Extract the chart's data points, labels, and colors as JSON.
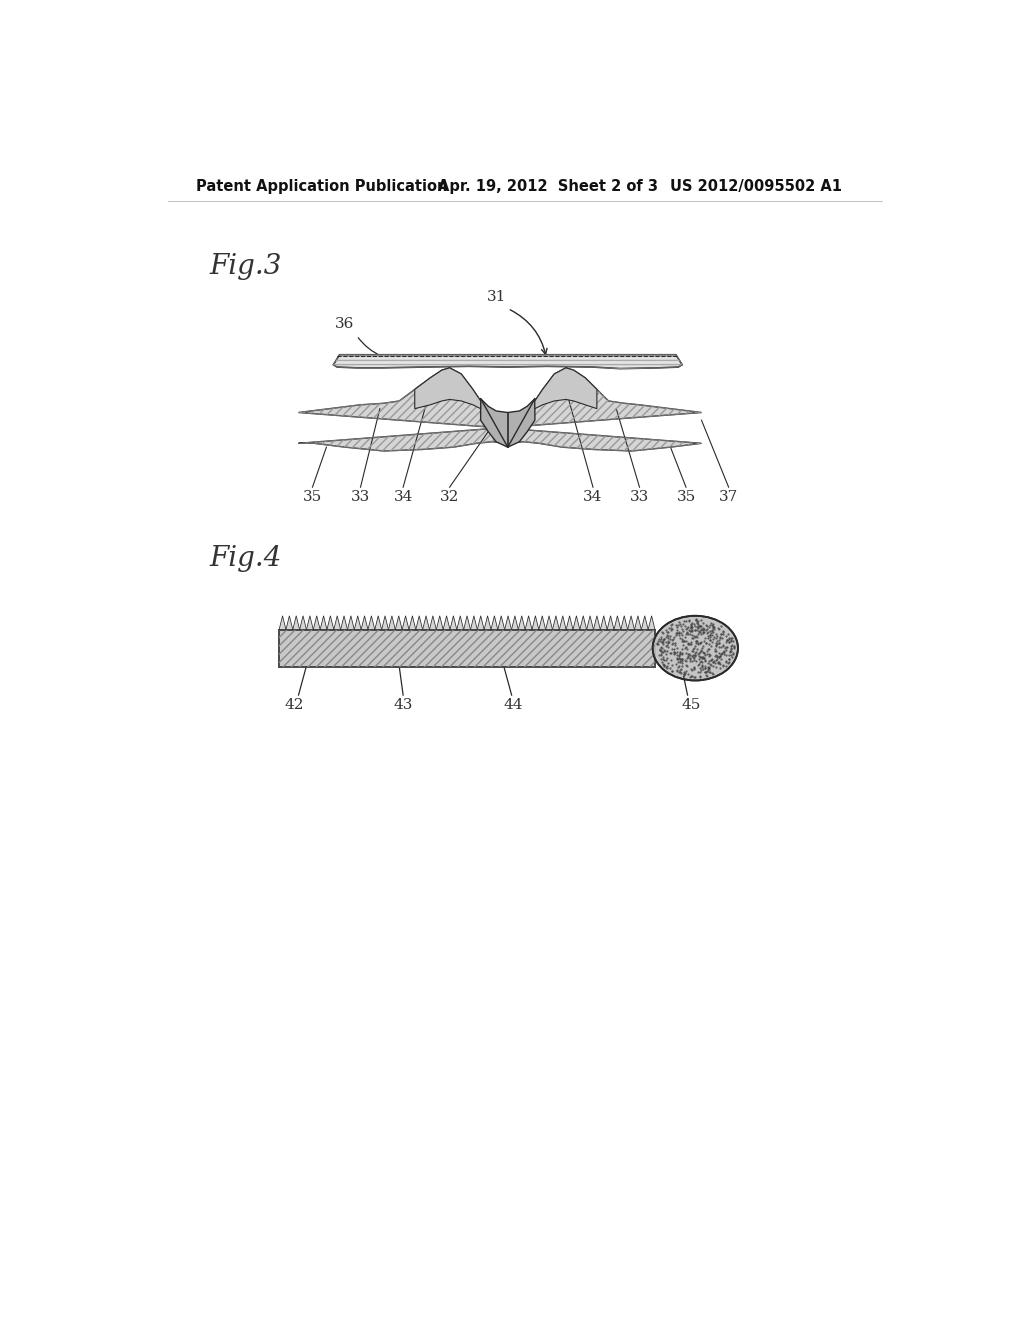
{
  "header_left": "Patent Application Publication",
  "header_center": "Apr. 19, 2012  Sheet 2 of 3",
  "header_right": "US 2012/0095502 A1",
  "fig3_label": "Fig.3",
  "fig4_label": "Fig.4",
  "fig3_ref_labels": [
    "35",
    "33",
    "34",
    "32",
    "34",
    "33",
    "35",
    "37"
  ],
  "fig3_ref_label_31": "31",
  "fig3_ref_label_36": "36",
  "fig4_ref_labels": [
    "42",
    "43",
    "44",
    "45"
  ],
  "bg_color": "#ffffff",
  "line_color": "#2a2a2a",
  "gray_dark": "#888888",
  "gray_mid": "#bbbbbb",
  "gray_light": "#d8d8d8"
}
